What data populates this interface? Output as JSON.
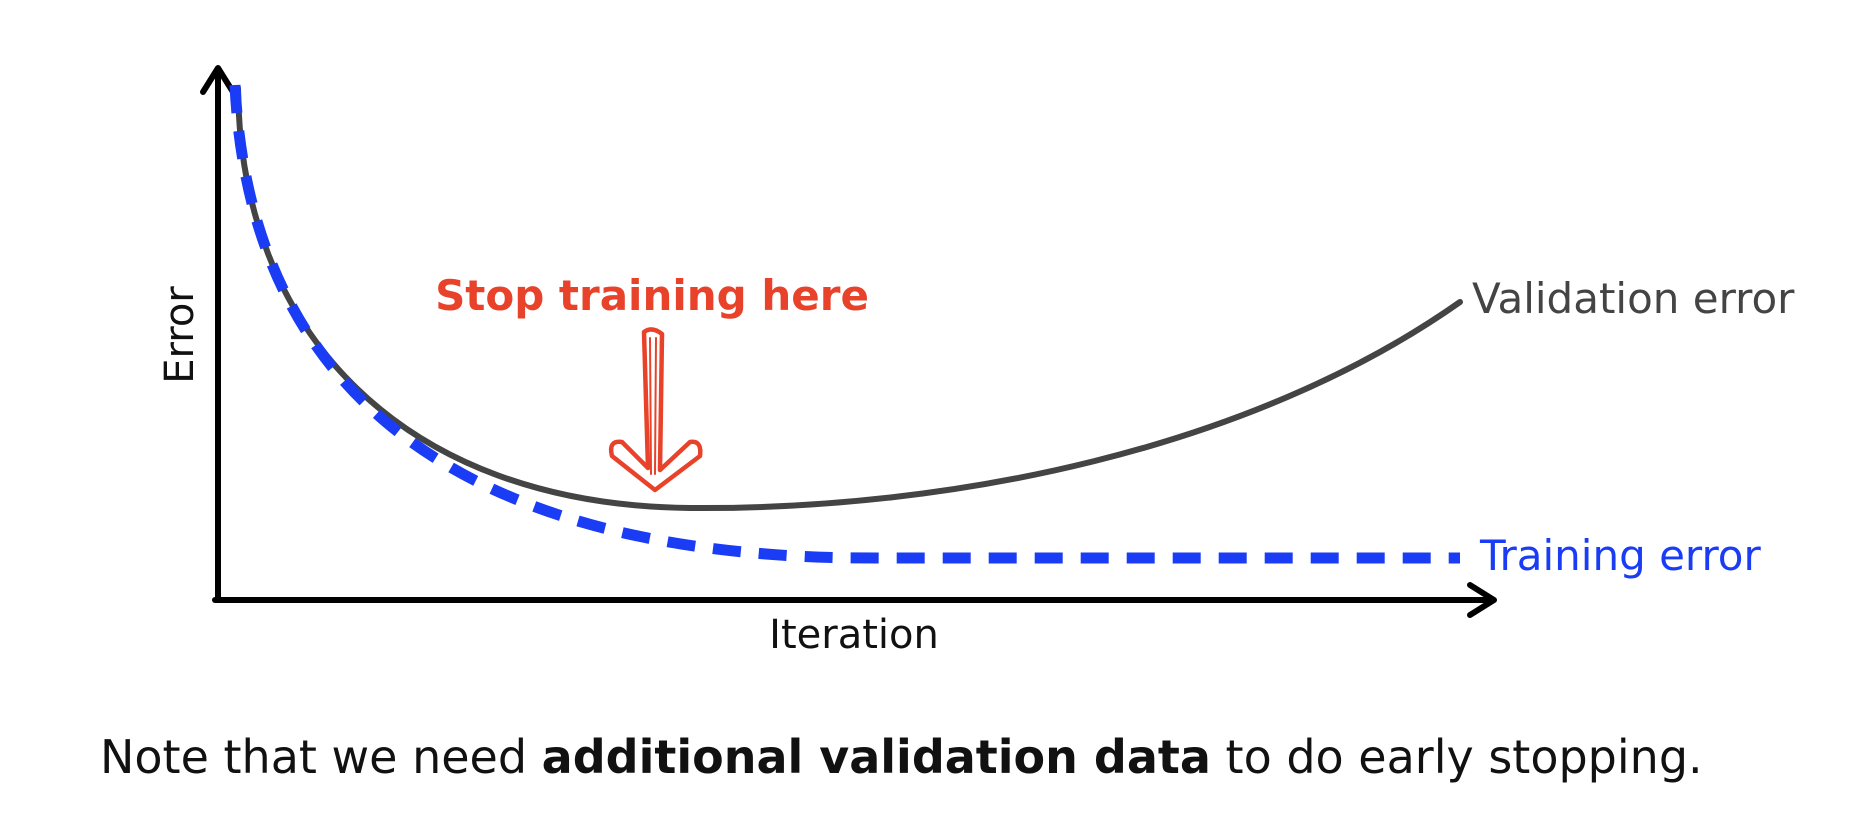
{
  "diagram": {
    "ylabel": "Error",
    "xlabel": "Iteration",
    "callout": "Stop training here",
    "curves": [
      {
        "name": "Validation error",
        "color": "#444444",
        "style": "solid"
      },
      {
        "name": "Training error",
        "color": "#1a3cf5",
        "style": "dashed"
      }
    ],
    "colors": {
      "axis": "#000000",
      "callout": "#e8432a"
    }
  },
  "note": {
    "prefix": "Note that we need ",
    "bold": "additional validation data",
    "suffix": " to do early stopping."
  }
}
